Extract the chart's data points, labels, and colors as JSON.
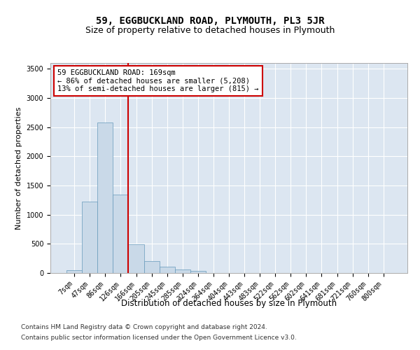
{
  "title": "59, EGGBUCKLAND ROAD, PLYMOUTH, PL3 5JR",
  "subtitle": "Size of property relative to detached houses in Plymouth",
  "xlabel": "Distribution of detached houses by size in Plymouth",
  "ylabel": "Number of detached properties",
  "bar_labels": [
    "7sqm",
    "47sqm",
    "86sqm",
    "126sqm",
    "166sqm",
    "205sqm",
    "245sqm",
    "285sqm",
    "324sqm",
    "364sqm",
    "404sqm",
    "443sqm",
    "483sqm",
    "522sqm",
    "562sqm",
    "602sqm",
    "641sqm",
    "681sqm",
    "721sqm",
    "760sqm",
    "800sqm"
  ],
  "bar_values": [
    50,
    1220,
    2580,
    1340,
    490,
    210,
    105,
    55,
    35,
    0,
    0,
    0,
    0,
    0,
    0,
    0,
    0,
    0,
    0,
    0,
    0
  ],
  "bar_color": "#c9d9e8",
  "bar_edge_color": "#6699bb",
  "highlight_bar_index": 4,
  "highlight_color": "#cc0000",
  "annotation_text": "59 EGGBUCKLAND ROAD: 169sqm\n← 86% of detached houses are smaller (5,208)\n13% of semi-detached houses are larger (815) →",
  "annotation_box_facecolor": "#ffffff",
  "annotation_box_edgecolor": "#cc0000",
  "ylim": [
    0,
    3600
  ],
  "yticks": [
    0,
    500,
    1000,
    1500,
    2000,
    2500,
    3000,
    3500
  ],
  "plot_bg_color": "#dce6f1",
  "footer_line1": "Contains HM Land Registry data © Crown copyright and database right 2024.",
  "footer_line2": "Contains public sector information licensed under the Open Government Licence v3.0.",
  "title_fontsize": 10,
  "subtitle_fontsize": 9,
  "xlabel_fontsize": 8.5,
  "ylabel_fontsize": 8,
  "tick_fontsize": 7,
  "annotation_fontsize": 7.5,
  "footer_fontsize": 6.5
}
